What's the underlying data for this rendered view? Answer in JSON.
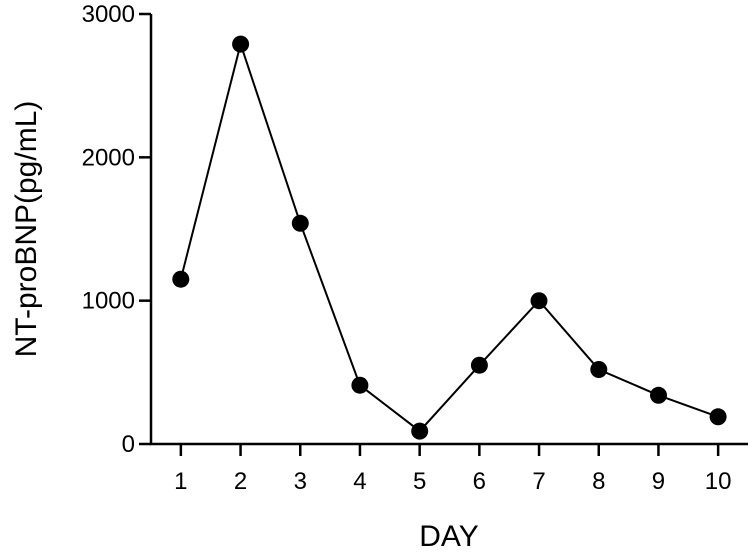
{
  "chart_data": {
    "type": "line",
    "title": "",
    "xlabel": "DAY",
    "ylabel": "NT-proBNP(pg/mL)",
    "x": [
      1,
      2,
      3,
      4,
      5,
      6,
      7,
      8,
      9,
      10
    ],
    "series": [
      {
        "values": [
          1150,
          2790,
          1540,
          410,
          90,
          550,
          1000,
          520,
          340,
          190
        ]
      }
    ],
    "xlim": [
      0.5,
      10.5
    ],
    "ylim": [
      0,
      3000
    ],
    "xticks": [
      "1",
      "2",
      "3",
      "4",
      "5",
      "6",
      "7",
      "8",
      "9",
      "10"
    ],
    "yticks": [
      "0",
      "1000",
      "2000",
      "3000"
    ],
    "grid": false,
    "colors": {
      "line": "#000000",
      "marker": "#000000"
    }
  }
}
